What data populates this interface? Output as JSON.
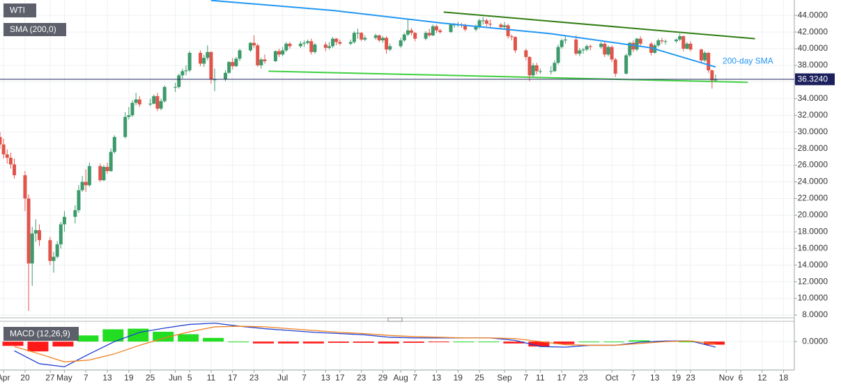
{
  "chart_data": [
    {
      "type": "candlestick",
      "title": "WTI",
      "x": [
        "Apr 13",
        "Apr 14",
        "Apr 15",
        "Apr 16",
        "Apr 17",
        "Apr 20",
        "Apr 21",
        "Apr 22",
        "Apr 23",
        "Apr 24",
        "Apr 27",
        "Apr 28",
        "Apr 29",
        "Apr 30",
        "May 1",
        "May 4",
        "May 5",
        "May 6",
        "May 7",
        "May 8",
        "May 11",
        "May 12",
        "May 13",
        "May 14",
        "May 15",
        "May 18",
        "May 19",
        "May 20",
        "May 21",
        "May 22",
        "May 25",
        "May 26",
        "May 27",
        "May 28",
        "May 29",
        "Jun 1",
        "Jun 2",
        "Jun 3",
        "Jun 4",
        "Jun 5",
        "Jun 8",
        "Jun 9",
        "Jun 10",
        "Jun 11",
        "Jun 12",
        "Jun 15",
        "Jun 16",
        "Jun 17",
        "Jun 18",
        "Jun 19",
        "Jun 22",
        "Jun 23",
        "Jun 24",
        "Jun 25",
        "Jun 26",
        "Jun 29",
        "Jun 30",
        "Jul 1",
        "Jul 2",
        "Jul 3",
        "Jul 6",
        "Jul 7",
        "Jul 8",
        "Jul 9",
        "Jul 10",
        "Jul 13",
        "Jul 14",
        "Jul 15",
        "Jul 16",
        "Jul 17",
        "Jul 20",
        "Jul 21",
        "Jul 22",
        "Jul 23",
        "Jul 24",
        "Jul 27",
        "Jul 28",
        "Jul 29",
        "Jul 30",
        "Jul 31",
        "Aug 3",
        "Aug 4",
        "Aug 5",
        "Aug 6",
        "Aug 7",
        "Aug 10",
        "Aug 11",
        "Aug 12",
        "Aug 13",
        "Aug 14",
        "Aug 17",
        "Aug 18",
        "Aug 19",
        "Aug 20",
        "Aug 21",
        "Aug 24",
        "Aug 25",
        "Aug 26",
        "Aug 27",
        "Aug 28",
        "Aug 31",
        "Sep 1",
        "Sep 2",
        "Sep 3",
        "Sep 4",
        "Sep 7",
        "Sep 8",
        "Sep 9",
        "Sep 10",
        "Sep 11",
        "Sep 14",
        "Sep 15",
        "Sep 16",
        "Sep 17",
        "Sep 18",
        "Sep 21",
        "Sep 22",
        "Sep 23",
        "Sep 24",
        "Sep 25",
        "Sep 28",
        "Sep 29",
        "Sep 30",
        "Oct 1",
        "Oct 2",
        "Oct 5",
        "Oct 6",
        "Oct 7",
        "Oct 8",
        "Oct 9",
        "Oct 12",
        "Oct 13",
        "Oct 14",
        "Oct 15",
        "Oct 16",
        "Oct 19",
        "Oct 20",
        "Oct 21",
        "Oct 22",
        "Oct 23",
        "Oct 26",
        "Oct 27",
        "Oct 28",
        "Oct 29",
        "Oct 30"
      ],
      "open": [
        29.4,
        28.5,
        27.3,
        26.9,
        26.1,
        24.8,
        22.0,
        14.2,
        17.8,
        18.2,
        17.0,
        14.5,
        15.0,
        16.5,
        18.9,
        19.8,
        20.6,
        23.0,
        24.0,
        23.6,
        25.9,
        24.2,
        25.8,
        25.3,
        27.6,
        29.4,
        31.8,
        32.0,
        33.5,
        33.9,
        33.3,
        33.4,
        34.3,
        32.8,
        33.7,
        35.4,
        35.4,
        36.8,
        37.3,
        37.4,
        39.5,
        38.2,
        38.9,
        39.6,
        36.3,
        36.3,
        37.1,
        38.4,
        37.9,
        38.8,
        39.8,
        40.7,
        40.4,
        38.0,
        38.7,
        38.5,
        39.7,
        39.3,
        39.8,
        40.6,
        40.3,
        40.6,
        40.7,
        40.9,
        39.6,
        40.5,
        40.1,
        40.3,
        41.2,
        40.8,
        40.6,
        40.8,
        41.9,
        41.9,
        41.1,
        41.3,
        41.6,
        41.0,
        41.3,
        39.9,
        40.3,
        41.0,
        41.7,
        42.2,
        41.9,
        41.2,
        41.9,
        41.6,
        42.7,
        42.2,
        42.0,
        42.9,
        42.9,
        42.9,
        42.8,
        42.3,
        42.6,
        43.4,
        43.4,
        43.0,
        42.9,
        42.6,
        42.8,
        41.5,
        41.4,
        39.8,
        39.0,
        36.8,
        38.0,
        37.3,
        37.3,
        37.3,
        38.3,
        40.2,
        41.0,
        41.1,
        39.4,
        39.8,
        39.9,
        40.3,
        40.2,
        40.6,
        39.3,
        40.2,
        38.7,
        37.0,
        39.2,
        40.7,
        39.9,
        41.2,
        40.6,
        39.5,
        40.4,
        41.0,
        40.9,
        40.9,
        41.1,
        41.5,
        40.0,
        40.6,
        39.9,
        38.6,
        39.5,
        37.4,
        36.2
      ],
      "high": [
        30.0,
        29.2,
        27.9,
        27.5,
        26.8,
        25.3,
        22.5,
        18.6,
        19.5,
        18.9,
        17.4,
        15.6,
        16.9,
        19.2,
        20.5,
        21.2,
        23.6,
        24.7,
        25.5,
        26.3,
        26.2,
        26.0,
        26.3,
        28.0,
        29.6,
        32.4,
        33.0,
        33.8,
        34.7,
        34.3,
        34.0,
        34.5,
        34.7,
        34.0,
        35.6,
        35.9,
        37.0,
        37.6,
        38.0,
        39.7,
        39.8,
        39.3,
        40.4,
        39.7,
        37.6,
        37.4,
        38.5,
        38.9,
        39.0,
        40.0,
        40.8,
        41.6,
        40.6,
        38.9,
        39.3,
        39.8,
        40.0,
        40.2,
        40.8,
        40.8,
        40.9,
        41.0,
        41.1,
        41.2,
        40.7,
        40.8,
        40.8,
        41.4,
        41.3,
        41.1,
        41.1,
        42.1,
        42.4,
        42.0,
        41.6,
        41.8,
        41.7,
        41.5,
        41.5,
        40.6,
        41.3,
        41.9,
        43.5,
        42.5,
        42.0,
        42.1,
        42.4,
        42.9,
        42.9,
        42.4,
        43.0,
        43.1,
        43.2,
        43.1,
        43.0,
        42.9,
        43.6,
        43.8,
        43.6,
        43.5,
        43.1,
        43.2,
        43.0,
        41.7,
        41.5,
        40.0,
        39.1,
        38.3,
        38.3,
        37.6,
        37.9,
        38.6,
        40.5,
        41.2,
        41.5,
        41.6,
        40.1,
        40.1,
        40.5,
        40.5,
        40.8,
        40.9,
        40.4,
        40.4,
        38.9,
        39.4,
        40.8,
        41.0,
        41.3,
        41.5,
        40.8,
        40.6,
        41.2,
        41.3,
        41.1,
        41.2,
        41.8,
        41.6,
        40.8,
        40.9,
        40.0,
        39.7,
        39.6,
        37.5,
        36.9
      ],
      "low": [
        28.0,
        26.8,
        26.2,
        25.6,
        24.4,
        20.5,
        8.5,
        11.5,
        16.8,
        16.3,
        14.0,
        13.1,
        14.8,
        16.0,
        18.0,
        19.0,
        20.3,
        22.8,
        22.8,
        23.4,
        24.0,
        24.1,
        25.0,
        25.2,
        27.4,
        29.2,
        31.5,
        31.8,
        33.2,
        33.0,
        33.1,
        33.3,
        32.5,
        32.6,
        33.5,
        34.8,
        35.2,
        36.4,
        36.8,
        37.2,
        37.9,
        37.8,
        38.6,
        35.8,
        34.9,
        36.1,
        37.0,
        37.5,
        37.8,
        38.5,
        39.6,
        40.1,
        37.8,
        37.6,
        38.2,
        38.4,
        39.0,
        39.1,
        39.6,
        40.0,
        40.1,
        40.2,
        40.5,
        39.3,
        39.4,
        39.7,
        39.9,
        40.1,
        40.4,
        40.4,
        40.4,
        40.6,
        41.2,
        40.9,
        40.9,
        41.1,
        40.8,
        40.7,
        39.4,
        39.7,
        40.1,
        40.8,
        41.5,
        41.6,
        40.9,
        41.0,
        41.4,
        41.5,
        41.9,
        41.8,
        41.9,
        42.5,
        42.6,
        42.5,
        42.1,
        42.1,
        42.4,
        42.9,
        42.7,
        42.6,
        42.4,
        42.3,
        41.2,
        41.0,
        39.5,
        38.6,
        36.1,
        36.6,
        36.9,
        37.0,
        36.9,
        37.2,
        38.1,
        40.0,
        40.6,
        39.2,
        39.1,
        39.4,
        39.7,
        39.8,
        40.0,
        39.0,
        39.1,
        38.4,
        36.6,
        36.9,
        39.0,
        39.6,
        39.7,
        40.3,
        39.2,
        39.4,
        40.2,
        40.6,
        40.5,
        40.7,
        40.9,
        39.7,
        39.9,
        39.7,
        38.3,
        38.4,
        37.1,
        35.2,
        36.0
      ],
      "close": [
        28.5,
        27.3,
        26.9,
        26.1,
        24.8,
        22.0,
        14.2,
        17.8,
        18.2,
        17.0,
        14.5,
        15.0,
        16.5,
        18.9,
        19.8,
        20.6,
        23.0,
        24.0,
        23.6,
        25.9,
        24.2,
        25.8,
        25.3,
        27.6,
        29.4,
        31.8,
        32.0,
        33.5,
        33.9,
        33.3,
        33.4,
        34.3,
        32.8,
        33.7,
        35.4,
        35.4,
        36.8,
        37.3,
        37.4,
        39.5,
        38.2,
        38.9,
        39.6,
        36.3,
        36.3,
        37.1,
        38.4,
        37.9,
        38.8,
        39.8,
        40.7,
        40.4,
        38.0,
        38.7,
        38.5,
        39.7,
        39.3,
        39.8,
        40.6,
        40.3,
        40.6,
        40.7,
        40.9,
        39.6,
        40.5,
        40.1,
        40.3,
        41.2,
        40.8,
        40.6,
        40.8,
        41.9,
        41.9,
        41.1,
        41.3,
        41.6,
        41.0,
        41.3,
        39.9,
        40.3,
        41.0,
        41.7,
        42.2,
        41.9,
        41.2,
        41.9,
        41.6,
        42.7,
        42.2,
        42.0,
        42.9,
        42.9,
        42.9,
        42.8,
        42.3,
        42.6,
        43.4,
        43.4,
        43.0,
        42.9,
        42.6,
        42.8,
        41.5,
        41.4,
        39.8,
        39.0,
        36.8,
        38.0,
        37.3,
        37.3,
        37.3,
        38.3,
        40.2,
        41.0,
        41.1,
        39.4,
        39.8,
        39.9,
        40.3,
        40.2,
        40.6,
        39.3,
        40.2,
        38.7,
        37.0,
        39.2,
        40.7,
        39.9,
        41.2,
        40.6,
        39.5,
        40.4,
        41.0,
        40.9,
        40.9,
        41.1,
        41.5,
        40.0,
        40.6,
        39.9,
        38.6,
        39.5,
        37.4,
        36.2,
        36.32
      ],
      "up_color": "#3c9a6b",
      "down_color": "#e0544b",
      "series": [
        {
          "name": "SMA (200,0)",
          "color": "#2196f3",
          "x": [
            "Jun 11",
            "Jul 15",
            "Aug 14",
            "Sep 14",
            "Oct 12",
            "Oct 30"
          ],
          "values": [
            45.8,
            44.6,
            43.1,
            41.8,
            40.1,
            37.8
          ]
        }
      ],
      "annotations": [
        {
          "text": "200-day SMA"
        }
      ],
      "trend_lines": [
        {
          "color": "#2f7d12",
          "x": [
            "Aug 15",
            "Nov 10"
          ],
          "values": [
            44.4,
            41.2
          ]
        },
        {
          "color": "#3ecf3e",
          "x": [
            "Jun 27",
            "Nov 8"
          ],
          "values": [
            37.3,
            35.96
          ]
        }
      ],
      "last_price": {
        "value": 36.324,
        "label": "36.3240",
        "color": "#1b1f5c"
      },
      "xlim": [
        "Apr 13",
        "Nov 21"
      ],
      "xticks": [
        {
          "value": "Apr 14",
          "label": "Apr"
        },
        {
          "value": "Apr 20",
          "label": "20"
        },
        {
          "value": "Apr 27",
          "label": "27"
        },
        {
          "value": "May 1",
          "label": "May"
        },
        {
          "value": "May 7",
          "label": "7"
        },
        {
          "value": "May 13",
          "label": "13"
        },
        {
          "value": "May 19",
          "label": "19"
        },
        {
          "value": "May 25",
          "label": "25"
        },
        {
          "value": "Jun 1",
          "label": "Jun"
        },
        {
          "value": "Jun 5",
          "label": "5"
        },
        {
          "value": "Jun 11",
          "label": "11"
        },
        {
          "value": "Jun 17",
          "label": "17"
        },
        {
          "value": "Jun 23",
          "label": "23"
        },
        {
          "value": "Jul 1",
          "label": "Jul"
        },
        {
          "value": "Jul 7",
          "label": "7"
        },
        {
          "value": "Jul 13",
          "label": "13"
        },
        {
          "value": "Jul 17",
          "label": "17"
        },
        {
          "value": "Jul 23",
          "label": "23"
        },
        {
          "value": "Jul 29",
          "label": "29"
        },
        {
          "value": "Aug 3",
          "label": "Aug"
        },
        {
          "value": "Aug 7",
          "label": "7"
        },
        {
          "value": "Aug 13",
          "label": "13"
        },
        {
          "value": "Aug 19",
          "label": "19"
        },
        {
          "value": "Aug 25",
          "label": "25"
        },
        {
          "value": "Sep 1",
          "label": "Sep"
        },
        {
          "value": "Sep 7",
          "label": "7"
        },
        {
          "value": "Sep 11",
          "label": "11"
        },
        {
          "value": "Sep 17",
          "label": "17"
        },
        {
          "value": "Sep 23",
          "label": "23"
        },
        {
          "value": "Oct 1",
          "label": "Oct"
        },
        {
          "value": "Oct 7",
          "label": "7"
        },
        {
          "value": "Oct 13",
          "label": "13"
        },
        {
          "value": "Oct 19",
          "label": "19"
        },
        {
          "value": "Oct 23",
          "label": "23"
        },
        {
          "value": "Nov 2",
          "label": "Nov"
        },
        {
          "value": "Nov 6",
          "label": "6"
        },
        {
          "value": "Nov 12",
          "label": "12"
        },
        {
          "value": "Nov 18",
          "label": "18"
        }
      ],
      "ylim": [
        7.75,
        45.85
      ],
      "yticks": [
        {
          "value": 8,
          "label": "8.0000"
        },
        {
          "value": 10,
          "label": "10.0000"
        },
        {
          "value": 12,
          "label": "12.0000"
        },
        {
          "value": 14,
          "label": "14.0000"
        },
        {
          "value": 16,
          "label": "16.0000"
        },
        {
          "value": 18,
          "label": "18.0000"
        },
        {
          "value": 20,
          "label": "20.0000"
        },
        {
          "value": 22,
          "label": "22.0000"
        },
        {
          "value": 24,
          "label": "24.0000"
        },
        {
          "value": 26,
          "label": "26.0000"
        },
        {
          "value": 28,
          "label": "28.0000"
        },
        {
          "value": 30,
          "label": "30.0000"
        },
        {
          "value": 32,
          "label": "32.0000"
        },
        {
          "value": 34,
          "label": "34.0000"
        },
        {
          "value": 36,
          "label": "36.0000"
        },
        {
          "value": 38,
          "label": "38.0000"
        },
        {
          "value": 40,
          "label": "40.0000"
        },
        {
          "value": 42,
          "label": "42.0000"
        },
        {
          "value": 44,
          "label": "44.0000"
        }
      ],
      "grid": true
    },
    {
      "type": "macd",
      "title": "MACD (12,26,9)",
      "x": [
        "Apr 17",
        "Apr 24",
        "May 1",
        "May 8",
        "May 15",
        "May 22",
        "May 29",
        "Jun 5",
        "Jun 12",
        "Jun 19",
        "Jun 26",
        "Jul 3",
        "Jul 10",
        "Jul 17",
        "Jul 24",
        "Jul 31",
        "Aug 7",
        "Aug 14",
        "Aug 21",
        "Aug 28",
        "Sep 4",
        "Sep 11",
        "Sep 18",
        "Sep 25",
        "Oct 2",
        "Oct 9",
        "Oct 16",
        "Oct 23",
        "Oct 30"
      ],
      "series": [
        {
          "color": "#2040d0",
          "values": [
            -1.5,
            -3.6,
            -4.1,
            -2.0,
            0.0,
            1.5,
            2.2,
            2.8,
            3.0,
            2.5,
            2.1,
            1.8,
            1.5,
            1.3,
            1.1,
            0.7,
            0.6,
            0.6,
            0.6,
            0.6,
            0.2,
            -0.8,
            -0.9,
            -0.6,
            -0.6,
            -0.1,
            0.1,
            0.1,
            -0.9
          ]
        },
        {
          "color": "#f08020",
          "values": [
            -0.8,
            -2.0,
            -3.3,
            -3.0,
            -2.0,
            -0.6,
            0.6,
            1.6,
            2.4,
            2.5,
            2.4,
            2.1,
            1.8,
            1.5,
            1.3,
            1.0,
            0.8,
            0.7,
            0.6,
            0.6,
            0.5,
            0.0,
            -0.5,
            -0.6,
            -0.6,
            -0.3,
            0.0,
            0.1,
            -0.4
          ]
        }
      ],
      "histogram": {
        "up_color": "#22dd22",
        "down_color": "#ff1a1a",
        "values": [
          -0.7,
          -1.6,
          -0.8,
          1.0,
          2.0,
          2.1,
          1.6,
          1.2,
          0.6,
          0.0,
          -0.3,
          -0.3,
          -0.3,
          -0.2,
          -0.2,
          -0.3,
          -0.2,
          -0.1,
          0.0,
          0.0,
          -0.3,
          -0.8,
          -0.4,
          0.0,
          0.0,
          0.2,
          0.1,
          0.0,
          -0.5
        ]
      },
      "ylim": [
        -4.4,
        3.3
      ],
      "yticks": [
        {
          "value": 0,
          "label": "0.0000"
        }
      ],
      "grid": true
    }
  ]
}
